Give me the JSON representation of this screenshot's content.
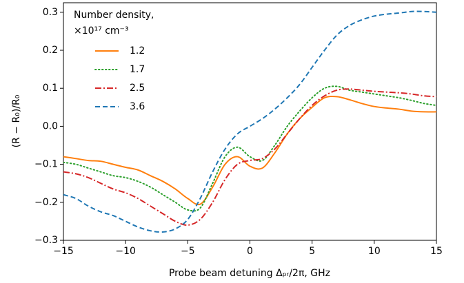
{
  "chart_data": {
    "type": "line",
    "xlabel": "Probe beam detuning Δₚᵣ/2π, GHz",
    "ylabel": "(R − R₀)/R₀",
    "legend_title": [
      "Number density,",
      "×10¹⁷ cm⁻³"
    ],
    "legend": "upper left",
    "grid": false,
    "xlim": [
      -15,
      15
    ],
    "ylim": [
      -0.3,
      0.325
    ],
    "xticks": [
      {
        "value": -15,
        "label": "−15"
      },
      {
        "value": -10,
        "label": "−10"
      },
      {
        "value": -5,
        "label": "−5"
      },
      0,
      5,
      10,
      15
    ],
    "yticks": [
      {
        "value": -0.3,
        "label": "−0.3"
      },
      {
        "value": -0.2,
        "label": "−0.2"
      },
      {
        "value": -0.1,
        "label": "−0.1"
      },
      {
        "value": 0,
        "label": "0.0"
      },
      0.1,
      0.2,
      0.3
    ],
    "x": [
      -15,
      -14,
      -13,
      -12,
      -11,
      -10,
      -9,
      -8,
      -7,
      -6,
      -5,
      -4,
      -3,
      -2,
      -1,
      0,
      1,
      2,
      3,
      4,
      5,
      6,
      7,
      8,
      9,
      10,
      11,
      12,
      13,
      14,
      15
    ],
    "series": [
      {
        "name": "1.2",
        "color": "#ff7f0e",
        "style": "solid",
        "values": [
          -0.08,
          -0.085,
          -0.09,
          -0.092,
          -0.1,
          -0.108,
          -0.115,
          -0.13,
          -0.145,
          -0.165,
          -0.19,
          -0.205,
          -0.16,
          -0.1,
          -0.08,
          -0.105,
          -0.11,
          -0.07,
          -0.02,
          0.02,
          0.05,
          0.075,
          0.078,
          0.07,
          0.06,
          0.052,
          0.048,
          0.045,
          0.04,
          0.038,
          0.038
        ]
      },
      {
        "name": "1.7",
        "color": "#2ca02c",
        "style": "dotted",
        "values": [
          -0.095,
          -0.1,
          -0.11,
          -0.12,
          -0.13,
          -0.135,
          -0.145,
          -0.16,
          -0.18,
          -0.2,
          -0.22,
          -0.215,
          -0.15,
          -0.08,
          -0.055,
          -0.08,
          -0.09,
          -0.05,
          0.0,
          0.04,
          0.075,
          0.1,
          0.105,
          0.095,
          0.09,
          0.085,
          0.08,
          0.075,
          0.068,
          0.06,
          0.055
        ]
      },
      {
        "name": "2.5",
        "color": "#d62728",
        "style": "dashdot",
        "values": [
          -0.12,
          -0.125,
          -0.135,
          -0.15,
          -0.165,
          -0.175,
          -0.19,
          -0.21,
          -0.23,
          -0.25,
          -0.26,
          -0.245,
          -0.2,
          -0.14,
          -0.1,
          -0.09,
          -0.085,
          -0.06,
          -0.02,
          0.02,
          0.055,
          0.08,
          0.095,
          0.098,
          0.095,
          0.092,
          0.09,
          0.088,
          0.085,
          0.08,
          0.078
        ]
      },
      {
        "name": "3.6",
        "color": "#1f77b4",
        "style": "dashed",
        "values": [
          -0.18,
          -0.19,
          -0.21,
          -0.225,
          -0.235,
          -0.25,
          -0.265,
          -0.275,
          -0.278,
          -0.27,
          -0.245,
          -0.19,
          -0.12,
          -0.06,
          -0.02,
          0.0,
          0.02,
          0.045,
          0.075,
          0.11,
          0.155,
          0.2,
          0.24,
          0.265,
          0.28,
          0.29,
          0.295,
          0.298,
          0.302,
          0.302,
          0.3
        ]
      }
    ]
  }
}
